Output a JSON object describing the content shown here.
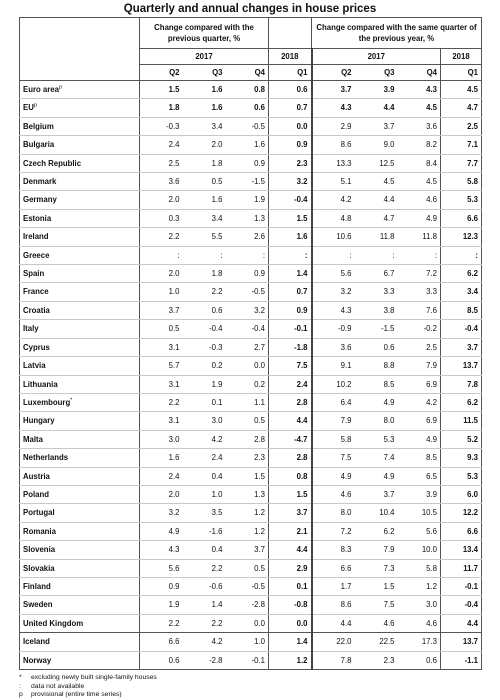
{
  "title": "Quarterly and annual changes in house prices",
  "header": {
    "group1": "Change compared with the previous quarter, %",
    "group2": "Change compared with the same quarter of the previous year, %",
    "year2017": "2017",
    "year2018": "2018",
    "q2": "Q2",
    "q3": "Q3",
    "q4": "Q4",
    "q1": "Q1"
  },
  "rows": [
    {
      "name": "Euro area",
      "sup": "p",
      "v": [
        "1.5",
        "1.6",
        "0.8",
        "0.6",
        "3.7",
        "3.9",
        "4.3",
        "4.5"
      ],
      "allbold": true
    },
    {
      "name": "EU",
      "sup": "p",
      "v": [
        "1.8",
        "1.6",
        "0.6",
        "0.7",
        "4.3",
        "4.4",
        "4.5",
        "4.7"
      ],
      "allbold": true
    },
    {
      "name": "Belgium",
      "sup": "",
      "v": [
        "-0.3",
        "3.4",
        "-0.5",
        "0.0",
        "2.9",
        "3.7",
        "3.6",
        "2.5"
      ]
    },
    {
      "name": "Bulgaria",
      "sup": "",
      "v": [
        "2.4",
        "2.0",
        "1.6",
        "0.9",
        "8.6",
        "9.0",
        "8.2",
        "7.1"
      ]
    },
    {
      "name": "Czech Republic",
      "sup": "",
      "v": [
        "2.5",
        "1.8",
        "0.9",
        "2.3",
        "13.3",
        "12.5",
        "8.4",
        "7.7"
      ]
    },
    {
      "name": "Denmark",
      "sup": "",
      "v": [
        "3.6",
        "0.5",
        "-1.5",
        "3.2",
        "5.1",
        "4.5",
        "4.5",
        "5.8"
      ]
    },
    {
      "name": "Germany",
      "sup": "",
      "v": [
        "2.0",
        "1.6",
        "1.9",
        "-0.4",
        "4.2",
        "4.4",
        "4.6",
        "5.3"
      ]
    },
    {
      "name": "Estonia",
      "sup": "",
      "v": [
        "0.3",
        "3.4",
        "1.3",
        "1.5",
        "4.8",
        "4.7",
        "4.9",
        "6.6"
      ]
    },
    {
      "name": "Ireland",
      "sup": "",
      "v": [
        "2.2",
        "5.5",
        "2.6",
        "1.6",
        "10.6",
        "11.8",
        "11.8",
        "12.3"
      ]
    },
    {
      "name": "Greece",
      "sup": "",
      "v": [
        ":",
        ":",
        ":",
        ":",
        ":",
        ":",
        ":",
        ":"
      ]
    },
    {
      "name": "Spain",
      "sup": "",
      "v": [
        "2.0",
        "1.8",
        "0.9",
        "1.4",
        "5.6",
        "6.7",
        "7.2",
        "6.2"
      ]
    },
    {
      "name": "France",
      "sup": "",
      "v": [
        "1.0",
        "2.2",
        "-0.5",
        "0.7",
        "3.2",
        "3.3",
        "3.3",
        "3.4"
      ]
    },
    {
      "name": "Croatia",
      "sup": "",
      "v": [
        "3.7",
        "0.6",
        "3.2",
        "0.9",
        "4.3",
        "3.8",
        "7.6",
        "8.5"
      ]
    },
    {
      "name": "Italy",
      "sup": "",
      "v": [
        "0.5",
        "-0.4",
        "-0.4",
        "-0.1",
        "-0.9",
        "-1.5",
        "-0.2",
        "-0.4"
      ]
    },
    {
      "name": "Cyprus",
      "sup": "",
      "v": [
        "3.1",
        "-0.3",
        "2.7",
        "-1.8",
        "3.6",
        "0.6",
        "2.5",
        "3.7"
      ]
    },
    {
      "name": "Latvia",
      "sup": "",
      "v": [
        "5.7",
        "0.2",
        "0.0",
        "7.5",
        "9.1",
        "8.8",
        "7.9",
        "13.7"
      ]
    },
    {
      "name": "Lithuania",
      "sup": "",
      "v": [
        "3.1",
        "1.9",
        "0.2",
        "2.4",
        "10.2",
        "8.5",
        "6.9",
        "7.8"
      ]
    },
    {
      "name": "Luxembourg",
      "sup": "*",
      "v": [
        "2.2",
        "0.1",
        "1.1",
        "2.8",
        "6.4",
        "4.9",
        "4.2",
        "6.2"
      ]
    },
    {
      "name": "Hungary",
      "sup": "",
      "v": [
        "3.1",
        "3.0",
        "0.5",
        "4.4",
        "7.9",
        "8.0",
        "6.9",
        "11.5"
      ]
    },
    {
      "name": "Malta",
      "sup": "",
      "v": [
        "3.0",
        "4.2",
        "2.8",
        "-4.7",
        "5.8",
        "5.3",
        "4.9",
        "5.2"
      ]
    },
    {
      "name": "Netherlands",
      "sup": "",
      "v": [
        "1.6",
        "2.4",
        "2.3",
        "2.8",
        "7.5",
        "7.4",
        "8.5",
        "9.3"
      ]
    },
    {
      "name": "Austria",
      "sup": "",
      "v": [
        "2.4",
        "0.4",
        "1.5",
        "0.8",
        "4.9",
        "4.9",
        "6.5",
        "5.3"
      ]
    },
    {
      "name": "Poland",
      "sup": "",
      "v": [
        "2.0",
        "1.0",
        "1.3",
        "1.5",
        "4.6",
        "3.7",
        "3.9",
        "6.0"
      ]
    },
    {
      "name": "Portugal",
      "sup": "",
      "v": [
        "3.2",
        "3.5",
        "1.2",
        "3.7",
        "8.0",
        "10.4",
        "10.5",
        "12.2"
      ]
    },
    {
      "name": "Romania",
      "sup": "",
      "v": [
        "4.9",
        "-1.6",
        "1.2",
        "2.1",
        "7.2",
        "6.2",
        "5.6",
        "6.6"
      ]
    },
    {
      "name": "Slovenia",
      "sup": "",
      "v": [
        "4.3",
        "0.4",
        "3.7",
        "4.4",
        "8.3",
        "7.9",
        "10.0",
        "13.4"
      ]
    },
    {
      "name": "Slovakia",
      "sup": "",
      "v": [
        "5.6",
        "2.2",
        "0.5",
        "2.9",
        "6.6",
        "7.3",
        "5.8",
        "11.7"
      ]
    },
    {
      "name": "Finland",
      "sup": "",
      "v": [
        "0.9",
        "-0.6",
        "-0.5",
        "0.1",
        "1.7",
        "1.5",
        "1.2",
        "-0.1"
      ]
    },
    {
      "name": "Sweden",
      "sup": "",
      "v": [
        "1.9",
        "1.4",
        "-2.8",
        "-0.8",
        "8.6",
        "7.5",
        "3.0",
        "-0.4"
      ]
    },
    {
      "name": "United Kingdom",
      "sup": "",
      "v": [
        "2.2",
        "2.2",
        "0.0",
        "0.0",
        "4.4",
        "4.6",
        "4.6",
        "4.4"
      ],
      "sepAfter": true
    },
    {
      "name": "Iceland",
      "sup": "",
      "v": [
        "6.6",
        "4.2",
        "1.0",
        "1.4",
        "22.0",
        "22.5",
        "17.3",
        "13.7"
      ]
    },
    {
      "name": "Norway",
      "sup": "",
      "v": [
        "0.6",
        "-2.8",
        "-0.1",
        "1.2",
        "7.8",
        "2.3",
        "0.6",
        "-1.1"
      ]
    }
  ],
  "footnotes": [
    {
      "symbol": "*",
      "text": "excluding newly built single-family houses"
    },
    {
      "symbol": ":",
      "text": "data not available"
    },
    {
      "symbol": "p",
      "text": "provisional (entire time series)"
    }
  ]
}
